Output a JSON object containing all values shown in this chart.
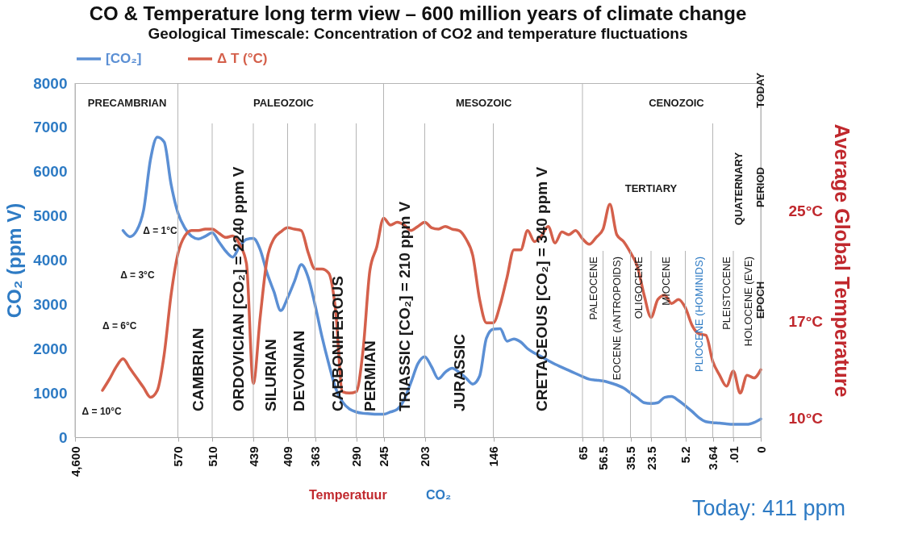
{
  "chart_data": {
    "type": "line",
    "title": "CO & Temperature long term view – 600 million years of climate change",
    "subtitle": "Geological Timescale: Concentration of CO2 and temperature fluctuations",
    "ylabel": "CO₂ (ppm V)",
    "y2label": "Average Global Temperature",
    "categories": [
      "4,600",
      null,
      null,
      null,
      null,
      null,
      null,
      null,
      null,
      null,
      null,
      null,
      null,
      null,
      null,
      "570",
      null,
      null,
      null,
      null,
      "510",
      null,
      null,
      null,
      null,
      null,
      "439",
      null,
      null,
      null,
      null,
      "409",
      null,
      null,
      null,
      "363",
      null,
      null,
      null,
      null,
      null,
      "290",
      null,
      null,
      null,
      "245",
      null,
      null,
      null,
      null,
      null,
      "203",
      null,
      null,
      null,
      null,
      null,
      null,
      null,
      null,
      null,
      "146",
      null,
      null,
      null,
      null,
      null,
      null,
      null,
      null,
      null,
      null,
      null,
      null,
      "65",
      null,
      null,
      "56.5",
      null,
      null,
      null,
      "35.5",
      null,
      null,
      "23.5",
      null,
      null,
      null,
      null,
      "5.2",
      null,
      null,
      null,
      "3.64",
      null,
      null,
      ".01",
      null,
      null,
      null,
      "0"
    ],
    "ylim": [
      0,
      8000
    ],
    "yticks": [
      0,
      1000,
      2000,
      3000,
      4000,
      5000,
      6000,
      7000,
      8000
    ],
    "y2lim": [
      8.6,
      34.3
    ],
    "y2ticks": [
      {
        "value": 10,
        "label": "10°C"
      },
      {
        "value": 17,
        "label": "17°C"
      },
      {
        "value": 25,
        "label": "25°C"
      }
    ],
    "grid": "x",
    "legend": "top",
    "series": [
      {
        "name": "[CO₂]",
        "color": "#5b8fd4",
        "values": [
          null,
          null,
          null,
          null,
          null,
          null,
          null,
          4670,
          4530,
          4670,
          5130,
          6270,
          6780,
          6670,
          5720,
          5070,
          4730,
          4540,
          4480,
          4540,
          4620,
          4410,
          4200,
          4070,
          4310,
          4470,
          4490,
          4240,
          3710,
          3290,
          2860,
          3150,
          3520,
          3900,
          3610,
          2990,
          2280,
          1660,
          1110,
          800,
          640,
          570,
          540,
          530,
          520,
          520,
          570,
          630,
          850,
          1240,
          1660,
          1820,
          1590,
          1320,
          1470,
          1560,
          1470,
          1340,
          1200,
          1380,
          2240,
          2440,
          2450,
          2170,
          2220,
          2150,
          2000,
          1900,
          1820,
          1730,
          1650,
          1580,
          1510,
          1440,
          1370,
          1310,
          1290,
          1270,
          1230,
          1180,
          1110,
          1000,
          890,
          780,
          760,
          780,
          900,
          920,
          830,
          710,
          580,
          440,
          350,
          330,
          320,
          300,
          290,
          290,
          290,
          330,
          411
        ]
      },
      {
        "name": "Δ T (°C)",
        "color": "#d4604b",
        "axis": "y2",
        "values": [
          null,
          null,
          null,
          null,
          12.0,
          12.8,
          13.7,
          14.3,
          13.6,
          12.9,
          12.2,
          11.5,
          12.0,
          14.6,
          18.9,
          21.9,
          23.2,
          23.6,
          23.6,
          23.7,
          23.7,
          23.4,
          23.1,
          23.2,
          22.6,
          21.2,
          12.5,
          17.3,
          21.5,
          23.0,
          23.5,
          23.8,
          23.7,
          23.6,
          22.0,
          20.8,
          20.8,
          20.5,
          17.8,
          11.9,
          11.8,
          11.9,
          14.9,
          20.7,
          22.4,
          24.5,
          24.0,
          24.2,
          24.0,
          23.6,
          23.9,
          24.2,
          23.8,
          23.7,
          23.9,
          23.7,
          23.6,
          23.0,
          21.8,
          18.6,
          16.9,
          16.9,
          18.2,
          20.2,
          22.2,
          22.2,
          23.6,
          22.8,
          23.2,
          23.9,
          22.7,
          23.5,
          23.3,
          23.6,
          23.0,
          22.6,
          23.1,
          23.7,
          25.5,
          23.3,
          22.8,
          22.0,
          21.0,
          18.9,
          17.3,
          18.6,
          18.9,
          18.3,
          18.6,
          18.0,
          16.7,
          16.1,
          16.0,
          14.1,
          13.1,
          12.3,
          13.4,
          11.8,
          13.1,
          12.9,
          13.5
        ]
      }
    ],
    "annotations": [
      "PRECAMBRIAN",
      "PALEOZOIC",
      "MESOZOIC",
      "CENOZOIC",
      "TERTIARY",
      "QUATERNARY",
      "CAMBRIAN",
      "ORDOVICIAN [CO₂] = 2240 ppm V",
      "SILURIAN",
      "DEVONIAN",
      "CARBONIFEROUS",
      "PERMIAN",
      "TRIASSIC [CO₂] = 210 ppm V",
      "JURASSIC",
      "CRETACEOUS [CO₂] = 340 ppm V",
      "PALEOCENE",
      "EOCENE (ANTROPOIDS)",
      "OLIGOCENE",
      "MIOCENE",
      "PLIOCENE (HOMINIDS)",
      "PLEISTOCENE",
      "HOLOCENE (EVE)",
      "TODAY",
      "PERIOD",
      "EPOCH",
      "Δ = 1°C",
      "Δ = 3°C",
      "Δ = 6°C",
      "Δ = 10°C",
      "Temperatuur",
      "CO₂",
      "Today: 411 ppm"
    ]
  }
}
